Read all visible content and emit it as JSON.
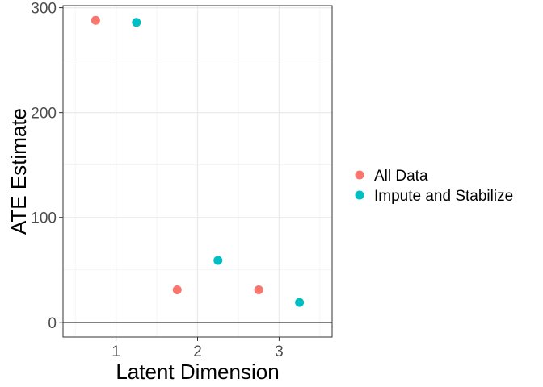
{
  "chart_data": {
    "type": "scatter",
    "title": "",
    "xlabel": "Latent Dimension",
    "ylabel": "ATE Estimate",
    "xlim": [
      0.35,
      3.65
    ],
    "ylim": [
      -14,
      302
    ],
    "x_ticks": [
      1,
      2,
      3
    ],
    "y_ticks": [
      0,
      100,
      200,
      300
    ],
    "grid": true,
    "reference_line_y": 0,
    "legend_position": "right",
    "series": [
      {
        "name": "All Data",
        "color": "#F8766D",
        "points": [
          {
            "x": 0.75,
            "y": 288
          },
          {
            "x": 1.75,
            "y": 31
          },
          {
            "x": 2.75,
            "y": 31
          }
        ]
      },
      {
        "name": "Impute and Stabilize",
        "color": "#00BFC4",
        "points": [
          {
            "x": 1.25,
            "y": 286
          },
          {
            "x": 2.25,
            "y": 59
          },
          {
            "x": 3.25,
            "y": 19
          }
        ]
      }
    ]
  }
}
